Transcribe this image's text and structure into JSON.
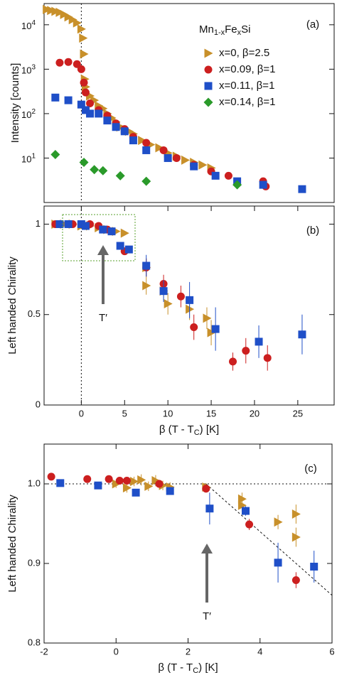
{
  "chart_data": [
    {
      "type": "scatter",
      "panel_label": "(a)",
      "ylabel": "Intensity [counts]",
      "log_y": true,
      "xlim": [
        -4.3,
        29.2
      ],
      "ylim": [
        1,
        30000
      ],
      "yticks": [
        {
          "value": 10,
          "label": "10",
          "exponent": "1"
        },
        {
          "value": 100,
          "label": "10",
          "exponent": "2"
        },
        {
          "value": 1000,
          "label": "10",
          "exponent": "3"
        },
        {
          "value": 10000,
          "label": "10",
          "exponent": "4"
        }
      ],
      "vlines": [
        0
      ],
      "legend_title_parts": [
        "Mn",
        "1-x",
        "Fe",
        "x",
        "Si"
      ],
      "series": [
        {
          "name": "x=0,  β=2.5",
          "color": "#c8902a",
          "marker": "triangle",
          "x": [
            -4,
            -3.5,
            -3,
            -2.5,
            -2,
            -1.5,
            -1,
            -0.5,
            0,
            0.2,
            0.3,
            0.4,
            0.5,
            1,
            1.5,
            2,
            2.5,
            3,
            3.5,
            4,
            4.5,
            5,
            5.5,
            6,
            7,
            8,
            9,
            10,
            11,
            12,
            13,
            14,
            15
          ],
          "values": [
            22000,
            21000,
            20000,
            19000,
            17000,
            15000,
            13000,
            11000,
            8000,
            5000,
            2200,
            600,
            400,
            250,
            200,
            150,
            130,
            100,
            80,
            65,
            50,
            45,
            40,
            35,
            25,
            20,
            17,
            13,
            11,
            9,
            8,
            7,
            6
          ]
        },
        {
          "name": "x=0.09, β=1",
          "color": "#cc1f1f",
          "marker": "circle",
          "x": [
            -2.5,
            -1.5,
            -0.5,
            0,
            0.3,
            0.5,
            1,
            2,
            3,
            4,
            5,
            6,
            7.5,
            9.5,
            11,
            13,
            15,
            17,
            21,
            21.3
          ],
          "values": [
            1400,
            1450,
            1300,
            1000,
            500,
            300,
            170,
            120,
            90,
            60,
            45,
            30,
            22,
            15,
            10,
            7,
            5,
            4,
            3,
            2.3
          ]
        },
        {
          "name": "x=0.11, β=1",
          "color": "#1f4fc8",
          "marker": "square",
          "x": [
            -3,
            -1.5,
            0,
            0.5,
            1,
            2,
            3,
            4,
            5,
            6,
            7.5,
            10,
            13,
            15.5,
            18,
            21,
            25.5
          ],
          "values": [
            230,
            200,
            160,
            120,
            100,
            100,
            70,
            50,
            40,
            25,
            15,
            10,
            6.5,
            4,
            3,
            2.5,
            2
          ]
        },
        {
          "name": "x=0.14, β=1",
          "color": "#2a9a2a",
          "marker": "diamond",
          "x": [
            -3,
            0.3,
            1.5,
            2.5,
            4.5,
            7.5,
            18
          ],
          "values": [
            12,
            8,
            5.5,
            5.2,
            4,
            3,
            2.5
          ]
        }
      ]
    },
    {
      "type": "scatter",
      "panel_label": "(b)",
      "ylabel": "Left handed Chirality",
      "xlabel_parts": [
        "β (T - T",
        "C",
        ")  [K]"
      ],
      "xlim": [
        -4.3,
        29.2
      ],
      "ylim": [
        0,
        1.1
      ],
      "xticks": [
        0,
        5,
        10,
        15,
        20,
        25
      ],
      "yticks": [
        0,
        0.5,
        1
      ],
      "vlines": [
        0
      ],
      "annotation": "T′",
      "series": [
        {
          "color": "#c8902a",
          "marker": "triangle",
          "x": [
            -3,
            -2,
            -1,
            0,
            1,
            2,
            3,
            4,
            5,
            7.5,
            7.5,
            9.5,
            10,
            12.5,
            14.5,
            15
          ],
          "values": [
            1,
            1,
            1,
            0.99,
            0.99,
            0.98,
            0.97,
            0.96,
            0.95,
            0.66,
            0.76,
            0.63,
            0.56,
            0.53,
            0.48,
            0.4
          ],
          "errors": [
            null,
            null,
            null,
            null,
            null,
            null,
            null,
            null,
            null,
            0.05,
            0.05,
            0.05,
            0.06,
            0.06,
            0.06,
            0.07
          ]
        },
        {
          "color": "#cc1f1f",
          "marker": "circle",
          "x": [
            -3,
            -1,
            0,
            1,
            2,
            3,
            5,
            7.5,
            9.5,
            11.5,
            13,
            17.5,
            19,
            21.5
          ],
          "values": [
            1,
            1,
            1,
            1,
            0.99,
            0.97,
            0.85,
            0.76,
            0.67,
            0.6,
            0.43,
            0.24,
            0.3,
            0.26
          ],
          "errors": [
            null,
            null,
            null,
            null,
            null,
            null,
            null,
            0.05,
            0.05,
            0.06,
            0.07,
            0.05,
            0.07,
            0.07
          ]
        },
        {
          "color": "#1f4fc8",
          "marker": "square",
          "x": [
            -2.5,
            -1.5,
            0,
            0.5,
            2.5,
            3.5,
            4.5,
            5.5,
            7.5,
            9.5,
            12.5,
            15.5,
            20.5,
            25.5
          ],
          "values": [
            1,
            1,
            1,
            0.99,
            0.97,
            0.96,
            0.88,
            0.86,
            0.77,
            0.63,
            0.58,
            0.42,
            0.35,
            0.39
          ],
          "errors": [
            null,
            null,
            null,
            null,
            null,
            null,
            null,
            null,
            0.06,
            0.06,
            0.1,
            0.12,
            0.09,
            0.11
          ]
        }
      ]
    },
    {
      "type": "scatter",
      "panel_label": "(c)",
      "ylabel": "Left handed Chirality",
      "xlabel_parts": [
        "β (T - T",
        "C",
        ")  [K]"
      ],
      "xlim": [
        -2,
        6
      ],
      "ylim": [
        0.8,
        1.05
      ],
      "xticks": [
        -2,
        0,
        2,
        4,
        6
      ],
      "yticks": [
        0.8,
        0.9,
        {
          "value": 1,
          "label": "1.0"
        }
      ],
      "hlines": [
        1
      ],
      "trend_line": {
        "x": [
          2.5,
          6
        ],
        "y": [
          1.0,
          0.86
        ]
      },
      "annotation": "T′",
      "series": [
        {
          "color": "#c8902a",
          "marker": "triangle",
          "x": [
            0,
            0.3,
            0.5,
            0.7,
            0.9,
            1.1,
            1.3,
            1.5,
            2.5,
            3.5,
            3.5,
            4.5,
            5,
            5
          ],
          "values": [
            1.0,
            0.995,
            1.003,
            1.005,
            0.997,
            1.004,
            0.998,
            0.996,
            0.996,
            0.981,
            0.973,
            0.952,
            0.962,
            0.933
          ],
          "errors": [
            0.005,
            0.006,
            0.006,
            0.007,
            0.006,
            0.007,
            0.006,
            0.006,
            0.005,
            0.008,
            0.008,
            0.009,
            0.012,
            0.012
          ]
        },
        {
          "color": "#cc1f1f",
          "marker": "circle",
          "x": [
            -1.8,
            -0.8,
            -0.2,
            0.1,
            0.3,
            1.2,
            2.5,
            3.7,
            5
          ],
          "values": [
            1.009,
            1.006,
            1.006,
            1.004,
            1.004,
            1.0,
            0.994,
            0.949,
            0.879
          ],
          "errors": [
            0.004,
            0.004,
            0.004,
            0.004,
            0.004,
            0.005,
            0.005,
            0.007,
            0.01
          ]
        },
        {
          "color": "#1f4fc8",
          "marker": "square",
          "x": [
            -1.55,
            -0.5,
            0.55,
            1.5,
            2.6,
            3.6,
            4.5,
            5.5
          ],
          "values": [
            1.001,
            0.998,
            0.989,
            0.991,
            0.969,
            0.966,
            0.901,
            0.896
          ],
          "errors": [
            null,
            null,
            0.004,
            0.004,
            0.02,
            0.006,
            0.025,
            0.02
          ]
        }
      ]
    }
  ]
}
